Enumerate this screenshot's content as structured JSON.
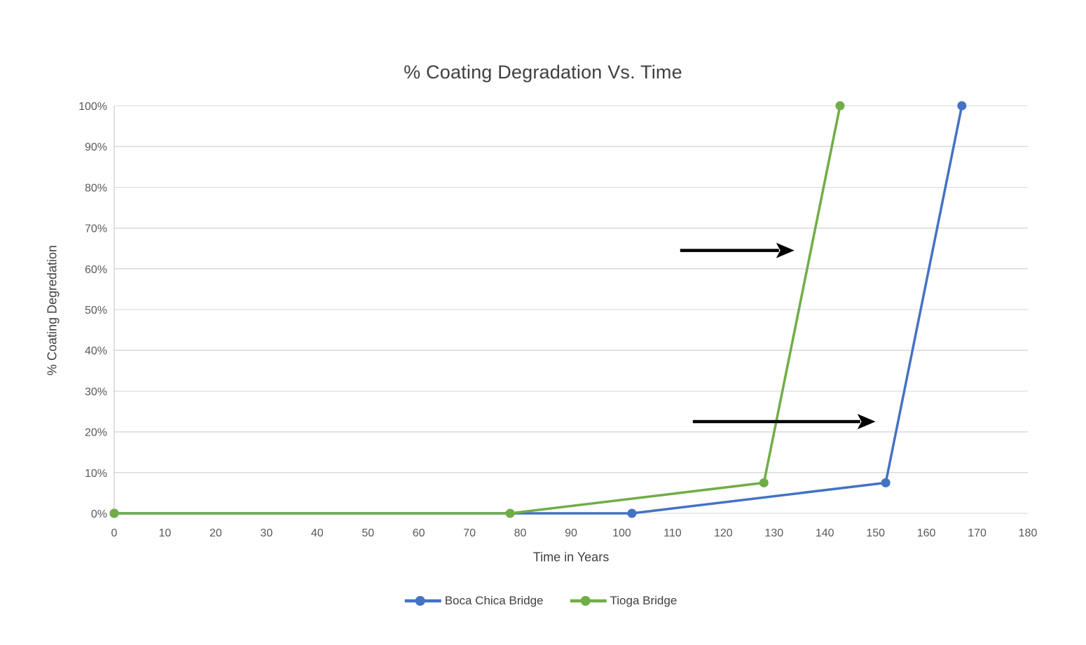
{
  "chart_data": {
    "type": "line",
    "title": "% Coating Degradation Vs. Time",
    "xlabel": "Time in Years",
    "ylabel": "% Coating Degredation",
    "xlim": [
      0,
      180
    ],
    "xtick_step": 10,
    "ylim": [
      0,
      100
    ],
    "ytick_step": 10,
    "ytick_suffix": "%",
    "grid": "horizontal-only",
    "legend_position": "bottom-center",
    "background_color": "#FFFFFF",
    "colors": {
      "gridline": "#D9D9D9",
      "axis_line": "#BFBFBF",
      "tick_text": "#595959",
      "title_text": "#404040",
      "annotation": "#000000"
    },
    "series": [
      {
        "name": "Boca Chica Bridge",
        "color": "#4472C4",
        "marker": "circle",
        "points": [
          [
            0,
            0
          ],
          [
            102,
            0
          ],
          [
            152,
            7.5
          ],
          [
            167,
            100
          ]
        ]
      },
      {
        "name": "Tioga Bridge",
        "color": "#70AD47",
        "marker": "circle",
        "points": [
          [
            0,
            0
          ],
          [
            78,
            0
          ],
          [
            128,
            7.5
          ],
          [
            143,
            100
          ]
        ]
      }
    ],
    "annotations": [
      {
        "type": "arrow",
        "direction": "right",
        "from_x": 111.5,
        "to_x": 134,
        "y": 64.5
      },
      {
        "type": "arrow",
        "direction": "right",
        "from_x": 114,
        "to_x": 150,
        "y": 22.5
      }
    ]
  }
}
